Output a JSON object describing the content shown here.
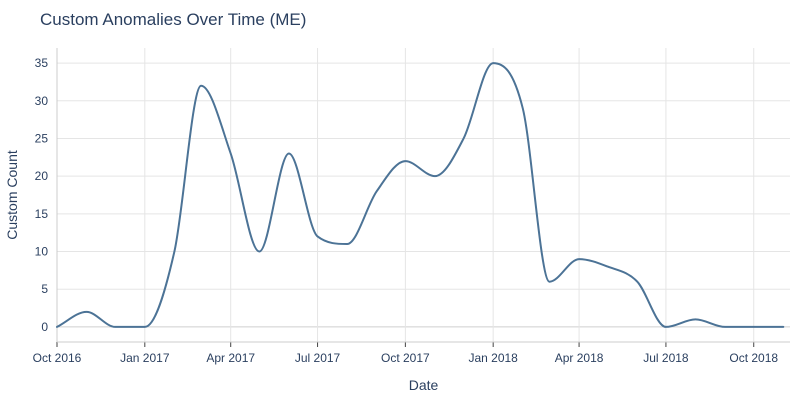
{
  "chart_data": {
    "type": "line",
    "title": "Custom Anomalies Over Time (ME)",
    "xlabel": "Date",
    "ylabel": "Custom Count",
    "ylim": [
      -2,
      37
    ],
    "xlim": [
      "2016-10-01",
      "2018-11-08"
    ],
    "x_ticks": [
      {
        "date": "2016-10-01",
        "label": "Oct 2016"
      },
      {
        "date": "2017-01-01",
        "label": "Jan 2017"
      },
      {
        "date": "2017-04-01",
        "label": "Apr 2017"
      },
      {
        "date": "2017-07-01",
        "label": "Jul 2017"
      },
      {
        "date": "2017-10-01",
        "label": "Oct 2017"
      },
      {
        "date": "2018-01-01",
        "label": "Jan 2018"
      },
      {
        "date": "2018-04-01",
        "label": "Apr 2018"
      },
      {
        "date": "2018-07-01",
        "label": "Jul 2018"
      },
      {
        "date": "2018-10-01",
        "label": "Oct 2018"
      }
    ],
    "y_ticks": [
      0,
      5,
      10,
      15,
      20,
      25,
      30,
      35
    ],
    "grid": true,
    "series": [
      {
        "color": "#4c7396",
        "points": [
          {
            "x": "2016-10-01",
            "y": 0
          },
          {
            "x": "2016-11-01",
            "y": 2
          },
          {
            "x": "2016-12-01",
            "y": 0
          },
          {
            "x": "2017-01-01",
            "y": 0
          },
          {
            "x": "2017-02-01",
            "y": 10
          },
          {
            "x": "2017-03-01",
            "y": 32
          },
          {
            "x": "2017-04-01",
            "y": 23
          },
          {
            "x": "2017-05-01",
            "y": 10
          },
          {
            "x": "2017-06-01",
            "y": 23
          },
          {
            "x": "2017-07-01",
            "y": 12
          },
          {
            "x": "2017-08-01",
            "y": 11
          },
          {
            "x": "2017-09-01",
            "y": 18
          },
          {
            "x": "2017-10-01",
            "y": 22
          },
          {
            "x": "2017-11-01",
            "y": 20
          },
          {
            "x": "2017-12-01",
            "y": 25
          },
          {
            "x": "2018-01-01",
            "y": 35
          },
          {
            "x": "2018-02-01",
            "y": 29
          },
          {
            "x": "2018-03-01",
            "y": 6
          },
          {
            "x": "2018-04-01",
            "y": 9
          },
          {
            "x": "2018-05-01",
            "y": 8
          },
          {
            "x": "2018-06-01",
            "y": 6
          },
          {
            "x": "2018-07-01",
            "y": 0
          },
          {
            "x": "2018-08-01",
            "y": 1
          },
          {
            "x": "2018-09-01",
            "y": 0
          },
          {
            "x": "2018-10-01",
            "y": 0
          },
          {
            "x": "2018-11-01",
            "y": 0
          }
        ]
      }
    ]
  }
}
